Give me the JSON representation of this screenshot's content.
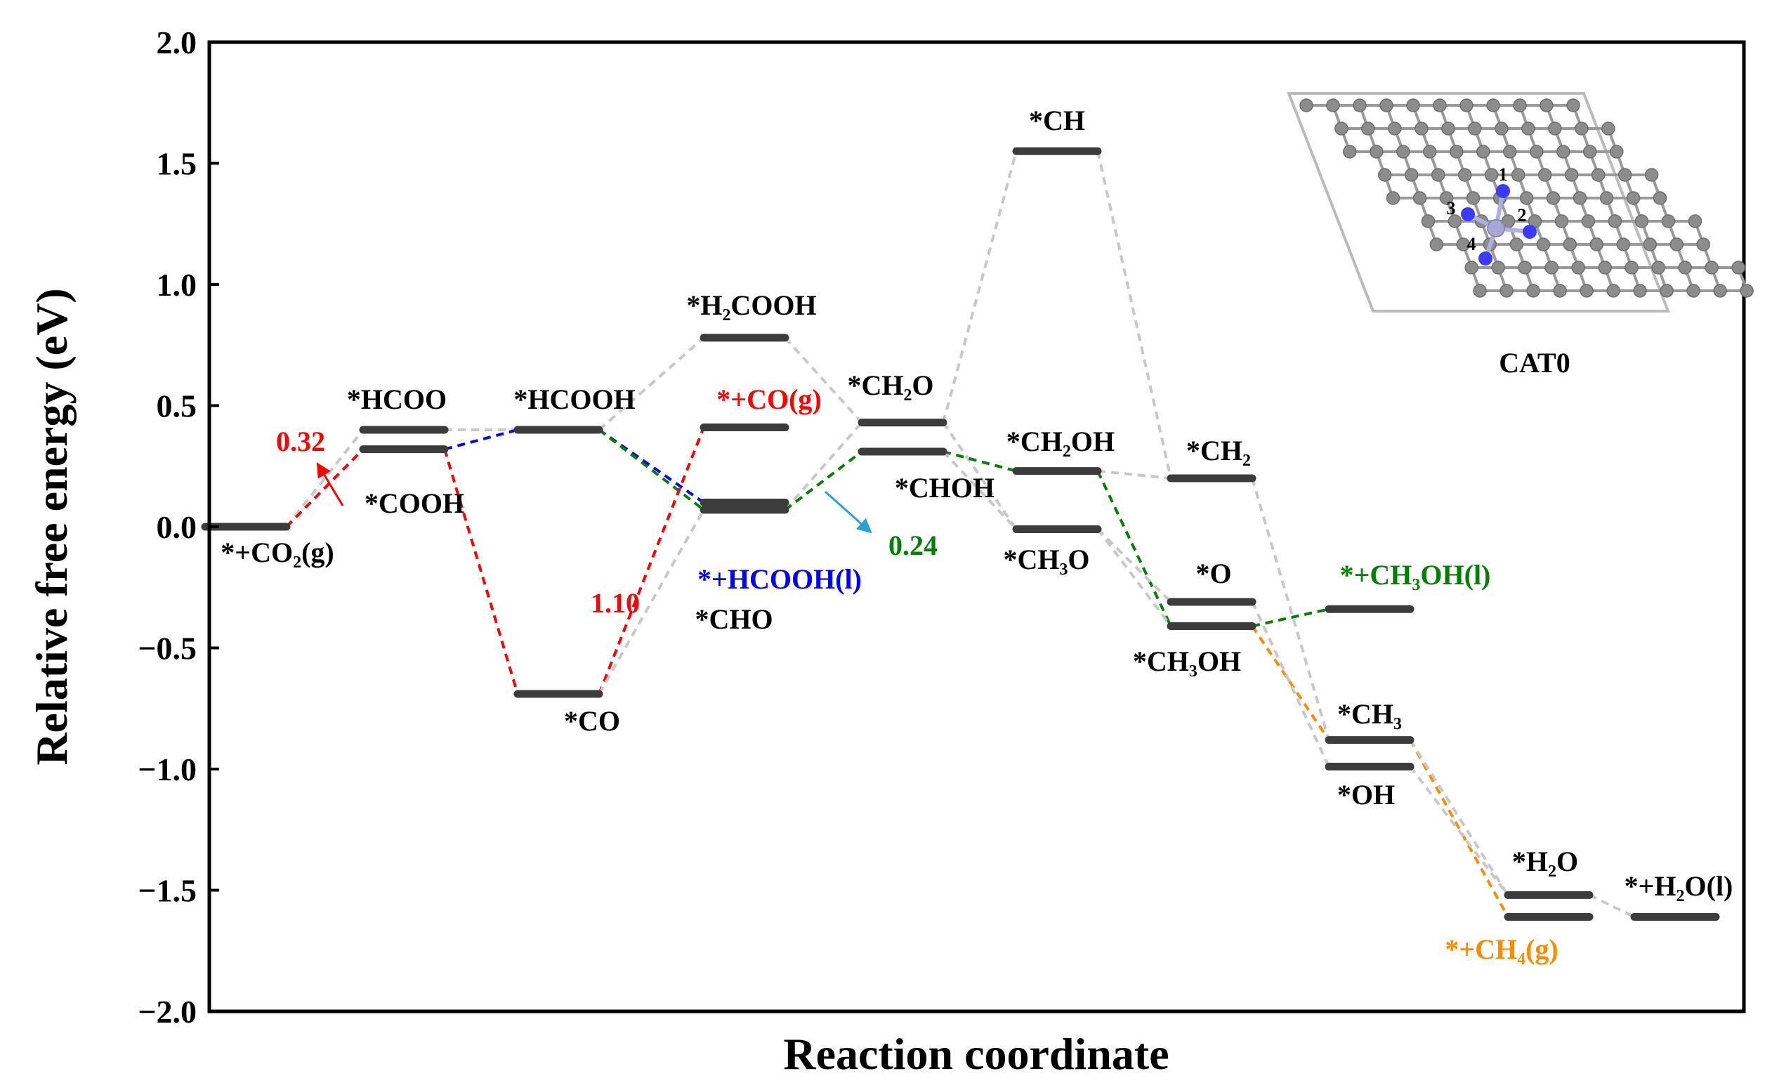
{
  "chart_data": {
    "type": "line",
    "subtype": "free-energy-diagram",
    "xlabel": "Reaction coordinate",
    "ylabel": "Relative free energy (eV)",
    "ylim": [
      -2.0,
      2.0
    ],
    "yticks": [
      "2.0",
      "1.5",
      "1.0",
      "0.5",
      "0.0",
      "−0.5",
      "−1.0",
      "−1.5",
      "−2.0"
    ],
    "grid": false,
    "inset_label": "CAT0",
    "inset_site_numbers": [
      "1",
      "2",
      "3",
      "4"
    ],
    "colors": {
      "level": "#3c3c3c",
      "connector": "#c8c8c8",
      "red_path": "#ff0000",
      "blue_path": "#0000ff",
      "green_path": "#008000",
      "orange_path": "#ff8c00",
      "cyan_arrow": "#2aa0d6",
      "inset_carbon": "#8c8c8c",
      "inset_nitrogen": "#3b3bff",
      "inset_metal": "#a8a8d8"
    },
    "levels": [
      {
        "id": "co2",
        "label": "*+CO₂(g)",
        "step": 0,
        "energy": 0.0,
        "color": "#000000"
      },
      {
        "id": "hcoo",
        "label": "*HCOO",
        "step": 1,
        "energy": 0.4,
        "color": "#000000"
      },
      {
        "id": "cooh",
        "label": "*COOH",
        "step": 1,
        "energy": 0.32,
        "color": "#000000"
      },
      {
        "id": "hcooh",
        "label": "*HCOOH",
        "step": 2,
        "energy": 0.4,
        "color": "#000000"
      },
      {
        "id": "co",
        "label": "*CO",
        "step": 2,
        "energy": -0.69,
        "color": "#000000"
      },
      {
        "id": "h2cooh",
        "label": "*H₂COOH",
        "step": 3,
        "energy": 0.78,
        "color": "#000000"
      },
      {
        "id": "co_g",
        "label": "*+CO(g)",
        "step": 3,
        "energy": 0.41,
        "color": "#ff0000"
      },
      {
        "id": "hcooh_l",
        "label": "*+HCOOH(l)",
        "step": 3,
        "energy": 0.1,
        "color": "#0000ff"
      },
      {
        "id": "cho",
        "label": "*CHO",
        "step": 3,
        "energy": 0.07,
        "color": "#000000"
      },
      {
        "id": "ch2o",
        "label": "*CH₂O",
        "step": 4,
        "energy": 0.43,
        "color": "#000000"
      },
      {
        "id": "choh",
        "label": "*CHOH",
        "step": 4,
        "energy": 0.31,
        "color": "#000000"
      },
      {
        "id": "ch",
        "label": "*CH",
        "step": 5,
        "energy": 1.55,
        "color": "#000000"
      },
      {
        "id": "ch2oh",
        "label": "*CH₂OH",
        "step": 5,
        "energy": 0.23,
        "color": "#000000"
      },
      {
        "id": "ch3o",
        "label": "*CH₃O",
        "step": 5,
        "energy": -0.01,
        "color": "#000000"
      },
      {
        "id": "ch2",
        "label": "*CH₂",
        "step": 6,
        "energy": 0.2,
        "color": "#000000"
      },
      {
        "id": "o",
        "label": "*O",
        "step": 6,
        "energy": -0.31,
        "color": "#000000"
      },
      {
        "id": "ch3oh",
        "label": "*CH₃OH",
        "step": 6,
        "energy": -0.41,
        "color": "#000000"
      },
      {
        "id": "ch3oh_l",
        "label": "*+CH₃OH(l)",
        "step": 7,
        "energy": -0.34,
        "color": "#008000"
      },
      {
        "id": "ch3",
        "label": "*CH₃",
        "step": 7,
        "energy": -0.88,
        "color": "#000000"
      },
      {
        "id": "oh",
        "label": "*OH",
        "step": 7,
        "energy": -0.99,
        "color": "#000000"
      },
      {
        "id": "h2o",
        "label": "*H₂O",
        "step": 8,
        "energy": -1.52,
        "color": "#000000"
      },
      {
        "id": "ch4_g",
        "label": "*+CH₄(g)",
        "step": 8,
        "energy": -1.61,
        "color": "#ff8c00"
      },
      {
        "id": "h2o_l",
        "label": "*+H₂O(l)",
        "step": 9,
        "energy": -1.61,
        "color": "#000000"
      }
    ],
    "connections": [
      {
        "from": "co2",
        "to": "hcoo",
        "color": "#c8c8c8"
      },
      {
        "from": "co2",
        "to": "cooh",
        "color": "#ff0000"
      },
      {
        "from": "hcoo",
        "to": "hcooh",
        "color": "#c8c8c8"
      },
      {
        "from": "cooh",
        "to": "hcooh",
        "color": "#0000ff"
      },
      {
        "from": "cooh",
        "to": "co",
        "color": "#ff0000"
      },
      {
        "from": "hcooh",
        "to": "h2cooh",
        "color": "#c8c8c8"
      },
      {
        "from": "hcooh",
        "to": "hcooh_l",
        "color": "#0000ff"
      },
      {
        "from": "hcooh",
        "to": "cho",
        "color": "#008000"
      },
      {
        "from": "co",
        "to": "co_g",
        "color": "#ff0000"
      },
      {
        "from": "co",
        "to": "cho",
        "color": "#c8c8c8"
      },
      {
        "from": "h2cooh",
        "to": "ch2o",
        "color": "#c8c8c8"
      },
      {
        "from": "cho",
        "to": "ch2o",
        "color": "#c8c8c8"
      },
      {
        "from": "cho",
        "to": "choh",
        "color": "#008000"
      },
      {
        "from": "ch2o",
        "to": "ch",
        "color": "#c8c8c8"
      },
      {
        "from": "ch2o",
        "to": "ch3o",
        "color": "#c8c8c8"
      },
      {
        "from": "choh",
        "to": "ch2oh",
        "color": "#008000"
      },
      {
        "from": "choh",
        "to": "ch3o",
        "color": "#c8c8c8"
      },
      {
        "from": "ch",
        "to": "ch2",
        "color": "#c8c8c8"
      },
      {
        "from": "ch2oh",
        "to": "ch2",
        "color": "#c8c8c8"
      },
      {
        "from": "ch2oh",
        "to": "ch3oh",
        "color": "#008000"
      },
      {
        "from": "ch3o",
        "to": "ch3oh",
        "color": "#c8c8c8"
      },
      {
        "from": "ch3o",
        "to": "o",
        "color": "#c8c8c8"
      },
      {
        "from": "ch3oh",
        "to": "ch3oh_l",
        "color": "#008000"
      },
      {
        "from": "ch3oh",
        "to": "ch3",
        "color": "#ff8c00"
      },
      {
        "from": "ch2",
        "to": "ch3",
        "color": "#c8c8c8"
      },
      {
        "from": "o",
        "to": "oh",
        "color": "#c8c8c8"
      },
      {
        "from": "ch3",
        "to": "ch4_g",
        "color": "#ff8c00"
      },
      {
        "from": "ch3",
        "to": "h2o",
        "color": "#c8c8c8"
      },
      {
        "from": "oh",
        "to": "h2o",
        "color": "#c8c8c8"
      },
      {
        "from": "h2o",
        "to": "h2o_l",
        "color": "#c8c8c8"
      }
    ],
    "annotations": [
      {
        "text": "0.32",
        "color": "#ff0000",
        "near": "co2"
      },
      {
        "text": "1.10",
        "color": "#ff0000",
        "near": "co"
      },
      {
        "text": "0.24",
        "color": "#008000",
        "near": "cho"
      }
    ]
  }
}
